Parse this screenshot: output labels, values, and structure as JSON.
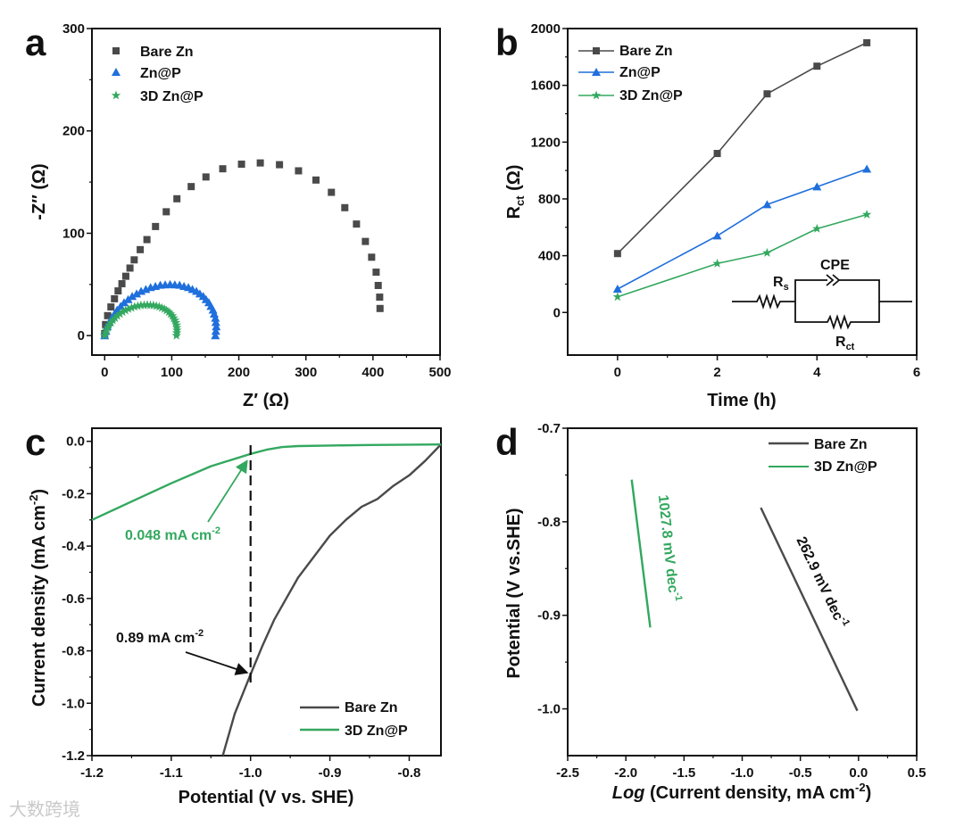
{
  "colors": {
    "bare": "#4a4a4a",
    "znp": "#1f6fdc",
    "zn3d": "#33a85f",
    "axis": "#111111"
  },
  "watermark": "大数跨境",
  "chart_data": [
    {
      "panel": "a",
      "type": "scatter",
      "xlabel": "Z′ (Ω)",
      "ylabel": "-Z″ (Ω)",
      "xlim": [
        -19,
        500
      ],
      "ylim": [
        -19,
        300
      ],
      "xticks": [
        0,
        100,
        200,
        300,
        400,
        500
      ],
      "yticks": [
        0,
        100,
        200,
        300
      ],
      "legend": {
        "placement": "top-left",
        "entries": [
          "Bare Zn",
          "Zn@P",
          "3D Zn@P"
        ]
      },
      "series": [
        {
          "name": "Bare Zn",
          "marker": "square",
          "color": "#4a4a4a",
          "points": [
            [
              0,
              2
            ],
            [
              1.3,
              10.8
            ],
            [
              4.4,
              19.5
            ],
            [
              9.3,
              28
            ],
            [
              14.6,
              36
            ],
            [
              20,
              43.7
            ],
            [
              25.7,
              50.7
            ],
            [
              31.5,
              58
            ],
            [
              37.7,
              66
            ],
            [
              44,
              74
            ],
            [
              53,
              84
            ],
            [
              63,
              93.8
            ],
            [
              75.8,
              106.6
            ],
            [
              91.8,
              121
            ],
            [
              107.7,
              133.7
            ],
            [
              129,
              145.6
            ],
            [
              151,
              155
            ],
            [
              176,
              163
            ],
            [
              204,
              167.5
            ],
            [
              232,
              168.7
            ],
            [
              260.6,
              167
            ],
            [
              289,
              161
            ],
            [
              315,
              152
            ],
            [
              338,
              140
            ],
            [
              358,
              125
            ],
            [
              375.4,
              109
            ],
            [
              388.7,
              92
            ],
            [
              398,
              76.6
            ],
            [
              404.7,
              62
            ],
            [
              407.8,
              49
            ],
            [
              410,
              37.6
            ],
            [
              410.5,
              26.5
            ]
          ]
        },
        {
          "name": "Zn@P",
          "marker": "triangle",
          "color": "#1f6fdc",
          "points": [
            [
              0,
              0
            ],
            [
              3.8,
              8.7
            ],
            [
              10.1,
              17.1
            ],
            [
              18.6,
              25
            ],
            [
              28.9,
              32.2
            ],
            [
              41,
              38.3
            ],
            [
              54.3,
              43.3
            ],
            [
              68.4,
              47
            ],
            [
              82.9,
              49.3
            ],
            [
              97.5,
              50
            ],
            [
              111.7,
              49.3
            ],
            [
              124.8,
              47
            ],
            [
              136.8,
              43.3
            ],
            [
              147,
              38.3
            ],
            [
              155.3,
              32.2
            ],
            [
              161.5,
              25
            ],
            [
              165.1,
              17.1
            ],
            [
              166.4,
              8.7
            ],
            [
              165,
              0
            ]
          ]
        },
        {
          "name": "3D Zn@P",
          "marker": "star",
          "color": "#33a85f",
          "points": [
            [
              0,
              0
            ],
            [
              2.5,
              5.2
            ],
            [
              6.6,
              10.3
            ],
            [
              12.2,
              15
            ],
            [
              18.9,
              19.3
            ],
            [
              26.8,
              23
            ],
            [
              35.5,
              26
            ],
            [
              44.6,
              28.2
            ],
            [
              54.1,
              29.6
            ],
            [
              63.5,
              30
            ],
            [
              72.7,
              29.6
            ],
            [
              81.2,
              28.2
            ],
            [
              89,
              26
            ],
            [
              95.6,
              23
            ],
            [
              100.9,
              19.3
            ],
            [
              104.8,
              15
            ],
            [
              107.2,
              10.3
            ],
            [
              107.9,
              5.2
            ],
            [
              107,
              0
            ]
          ]
        }
      ]
    },
    {
      "panel": "b",
      "type": "line",
      "xlabel": "Time (h)",
      "ylabel": "R",
      "ylabel_sub": "ct",
      "ylabel_tail": " (Ω)",
      "xlim": [
        -1,
        6
      ],
      "ylim": [
        -300,
        2000
      ],
      "xticks": [
        0,
        2,
        4,
        6
      ],
      "yticks": [
        0,
        400,
        800,
        1200,
        1600,
        2000
      ],
      "x": [
        0,
        2,
        3,
        4,
        5
      ],
      "legend": {
        "placement": "top-left",
        "entries": [
          "Bare Zn",
          "Zn@P",
          "3D Zn@P"
        ]
      },
      "series": [
        {
          "name": "Bare Zn",
          "marker": "square",
          "color": "#4a4a4a",
          "values": [
            415,
            1120,
            1540,
            1735,
            1900
          ]
        },
        {
          "name": "Zn@P",
          "marker": "triangle",
          "color": "#1f6fdc",
          "values": [
            165,
            540,
            760,
            885,
            1010
          ]
        },
        {
          "name": "3D Zn@P",
          "marker": "star",
          "color": "#33a85f",
          "values": [
            110,
            345,
            420,
            590,
            690
          ]
        }
      ],
      "circuit": {
        "rs": "R",
        "rs_sub": "s",
        "cpe": "CPE",
        "rct": "R",
        "rct_sub": "ct"
      }
    },
    {
      "panel": "c",
      "type": "line",
      "xlabel": "Potential (V vs. SHE)",
      "ylabel": "Current density (mA cm",
      "ylabel_sup": "-2",
      "ylabel_tail": ")",
      "xlim": [
        -1.2,
        -0.76
      ],
      "ylim": [
        -1.2,
        0.05
      ],
      "xticks": [
        -1.2,
        -1.1,
        -1.0,
        -0.9,
        -0.8
      ],
      "yticks": [
        0.0,
        -0.2,
        -0.4,
        -0.6,
        -0.8,
        -1.0,
        -1.2
      ],
      "legend": {
        "placement": "bottom-right",
        "entries": [
          "Bare Zn",
          "3D Zn@P"
        ]
      },
      "series": [
        {
          "name": "Bare Zn",
          "color": "#4a4a4a",
          "points": [
            [
              -1.035,
              -1.2
            ],
            [
              -1.02,
              -1.04
            ],
            [
              -1.0,
              -0.89
            ],
            [
              -0.985,
              -0.78
            ],
            [
              -0.97,
              -0.68
            ],
            [
              -0.955,
              -0.6
            ],
            [
              -0.94,
              -0.52
            ],
            [
              -0.92,
              -0.44
            ],
            [
              -0.9,
              -0.36
            ],
            [
              -0.88,
              -0.3
            ],
            [
              -0.86,
              -0.25
            ],
            [
              -0.84,
              -0.22
            ],
            [
              -0.82,
              -0.17
            ],
            [
              -0.8,
              -0.13
            ],
            [
              -0.78,
              -0.075
            ],
            [
              -0.76,
              -0.012
            ]
          ]
        },
        {
          "name": "3D Zn@P",
          "color": "#33a85f",
          "points": [
            [
              -1.2,
              -0.3
            ],
            [
              -1.15,
              -0.23
            ],
            [
              -1.1,
              -0.16
            ],
            [
              -1.05,
              -0.095
            ],
            [
              -1.0,
              -0.048
            ],
            [
              -0.98,
              -0.032
            ],
            [
              -0.96,
              -0.022
            ],
            [
              -0.94,
              -0.018
            ],
            [
              -0.9,
              -0.016
            ],
            [
              -0.85,
              -0.014
            ],
            [
              -0.76,
              -0.012
            ]
          ]
        }
      ],
      "annotations": [
        {
          "text": "0.048 mA cm",
          "sup": "-2",
          "color": "#33a85f",
          "at": [
            -1.0,
            -0.048
          ]
        },
        {
          "text": "0.89 mA cm",
          "sup": "-2",
          "color": "#111111",
          "at": [
            -1.0,
            -0.89
          ]
        }
      ],
      "reference_line_x": -1.0
    },
    {
      "panel": "d",
      "type": "line",
      "xlabel_italic": "Log",
      "xlabel": " (Current density, mA cm",
      "xlabel_sup": "-2",
      "xlabel_tail": ")",
      "ylabel": "Potential (V vs.SHE)",
      "xlim": [
        -2.5,
        0.5
      ],
      "ylim": [
        -1.05,
        -0.7
      ],
      "xticks": [
        -2.5,
        -2.0,
        -1.5,
        -1.0,
        -0.5,
        0.0,
        0.5
      ],
      "yticks": [
        -0.7,
        -0.8,
        -0.9,
        -1.0
      ],
      "legend": {
        "placement": "top-right",
        "entries": [
          "Bare Zn",
          "3D Zn@P"
        ]
      },
      "series": [
        {
          "name": "Bare Zn",
          "color": "#4a4a4a",
          "points": [
            [
              -0.84,
              -0.785
            ],
            [
              -0.01,
              -1.002
            ]
          ]
        },
        {
          "name": "3D Zn@P",
          "color": "#33a85f",
          "points": [
            [
              -1.95,
              -0.755
            ],
            [
              -1.79,
              -0.913
            ]
          ]
        }
      ],
      "annotations": [
        {
          "text": "262.9 mV dec",
          "sup": "-1",
          "color": "#111111"
        },
        {
          "text": "1027.8 mV dec",
          "sup": "-1",
          "color": "#33a85f"
        }
      ]
    }
  ]
}
